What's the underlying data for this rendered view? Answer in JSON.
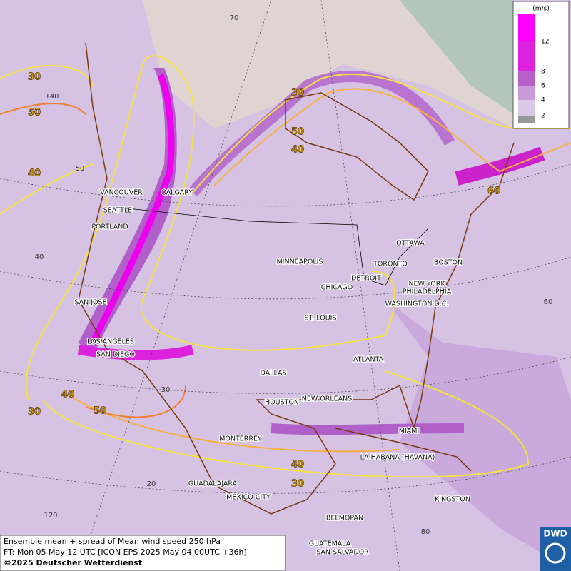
{
  "caption": {
    "line1": "Ensemble mean + spread of Mean wind speed 250 hPa",
    "line2": "FT: Mon 05 May 12 UTC [ICON EPS 2025 May 04 00UTC +36h]",
    "line3": "©2025 Deutscher Wetterdienst"
  },
  "logo": "DWD",
  "legend": {
    "unit": "(m/s)",
    "ticks": [
      12,
      8,
      6,
      4,
      2
    ]
  },
  "cities": [
    "VANCOUVER",
    "CALGARY",
    "SEATTLE",
    "PORTLAND",
    "MINNEAPOLIS",
    "OTTAWA",
    "TORONTO",
    "BOSTON",
    "DETROIT",
    "CHICAGO",
    "NEW YORK",
    "PHILADELPHIA",
    "WASHINGTON D.C.",
    "SAN JOSE",
    "ST. LOUIS",
    "LOS ANGELES",
    "SAN DIEGO",
    "ATLANTA",
    "DALLAS",
    "HOUSTON",
    "NEW ORLEANS",
    "MIAMI",
    "MONTERREY",
    "LA HABANA (HAVANA)",
    "GUADALAJARA",
    "MEXICO CITY",
    "KINGSTON",
    "BELMOPAN",
    "GUATEMALA",
    "SAN SALVADOR"
  ],
  "contour_labels": [
    30,
    50,
    40,
    30,
    50,
    40,
    60,
    40,
    30,
    50,
    40,
    30
  ],
  "grid_labels": [
    70,
    140,
    50,
    40,
    60,
    30,
    20,
    120,
    80
  ]
}
